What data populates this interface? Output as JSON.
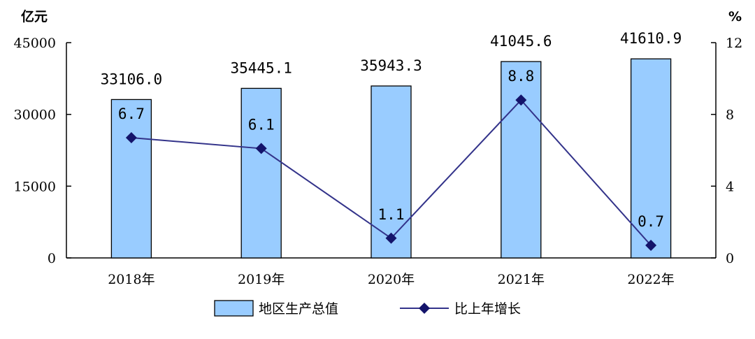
{
  "chart_data": {
    "type": "bar",
    "categories": [
      "2018年",
      "2019年",
      "2020年",
      "2021年",
      "2022年"
    ],
    "series": [
      {
        "name": "地区生产总值",
        "type": "bar",
        "axis": "left",
        "values": [
          33106.0,
          35445.1,
          35943.3,
          41045.6,
          41610.9
        ],
        "labels": [
          "33106.0",
          "35445.1",
          "35943.3",
          "41045.6",
          "41610.9"
        ],
        "color": "#99ccff"
      },
      {
        "name": "比上年增长",
        "type": "line",
        "axis": "right",
        "values": [
          6.7,
          6.1,
          1.1,
          8.8,
          0.7
        ],
        "labels": [
          "6.7",
          "6.1",
          "1.1",
          "8.8",
          "0.7"
        ],
        "color": "#33338a"
      }
    ],
    "y_left": {
      "unit": "亿元",
      "ylim": [
        0,
        45000
      ],
      "ticks": [
        "0",
        "15000",
        "30000",
        "45000"
      ]
    },
    "y_right": {
      "unit": "%",
      "ylim": [
        0,
        12
      ],
      "ticks": [
        "0",
        "4",
        "8",
        "12"
      ]
    },
    "grid": false,
    "legend": "bottom-center"
  }
}
